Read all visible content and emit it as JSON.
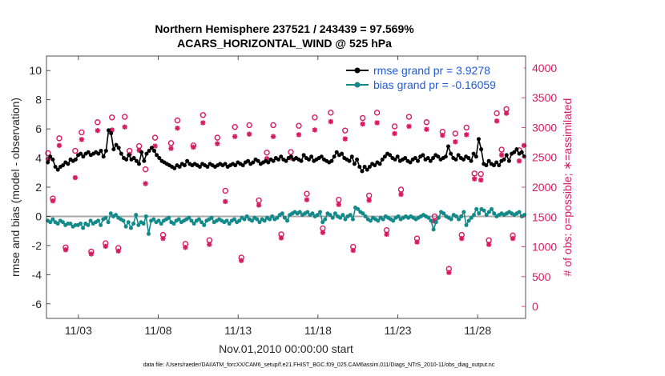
{
  "chart_data": {
    "type": "line",
    "title_line1": "Northern Hemisphere 237521 / 243439 = 97.569%",
    "title_line2": "ACARS_HORIZONTAL_WIND @ 525 hPa",
    "xlabel": "Nov.01,2010 00:00:00 start",
    "ylabel_left": "rmse and bias (model - observation)",
    "ylabel_right": "# of obs: o=possible; ∗=assimilated",
    "footer": "data file: /Users/raeder/DAI/ATM_forcXX/CAM6_setup/f.e21.FHIST_BGC.f09_025.CAM6assim.011/Diags_NTrS_2010-11/obs_diag_output.nc",
    "x_tick_labels": [
      "11/03",
      "11/08",
      "11/13",
      "11/18",
      "11/23",
      "11/28"
    ],
    "x_tick_days": [
      3,
      8,
      13,
      18,
      23,
      28
    ],
    "xlim_days": [
      1,
      31
    ],
    "ylim_left": [
      -7,
      11
    ],
    "yticks_left": [
      "10",
      "8",
      "6",
      "4",
      "2",
      "0",
      "-2",
      "-4",
      "-6"
    ],
    "ylim_right": [
      -200,
      4200
    ],
    "yticks_right": [
      "4000",
      "3500",
      "3000",
      "2500",
      "2000",
      "1500",
      "1000",
      "500",
      "0"
    ],
    "colors": {
      "rmse": "#000000",
      "bias": "#138a8a",
      "obs": "#d81b60",
      "zero_line": "#a9a9a9",
      "legend_text": "#1f5bd6"
    },
    "series": [
      {
        "name": "rmse grand pr = 3.9278",
        "values": [
          3.7,
          4.1,
          3.9,
          3.4,
          3.2,
          3.4,
          3.5,
          3.7,
          3.6,
          3.9,
          3.8,
          3.9,
          4.2,
          4.3,
          4.1,
          4.3,
          4.4,
          4.2,
          4.3,
          4.4,
          4.3,
          4.5,
          4.1,
          4.5,
          5.9,
          5.7,
          4.6,
          4.9,
          4.7,
          4.3,
          4.0,
          3.9,
          4.2,
          3.9,
          4.0,
          3.8,
          3.6,
          4.4,
          3.8,
          4.3,
          4.5,
          4.7,
          4.5,
          4.2,
          4.0,
          3.8,
          3.7,
          3.6,
          3.5,
          3.4,
          3.3,
          3.5,
          3.4,
          3.6,
          3.5,
          3.8,
          3.6,
          3.5,
          3.6,
          3.5,
          3.4,
          3.6,
          3.5,
          3.4,
          3.6,
          3.5,
          3.4,
          3.5,
          3.6,
          3.5,
          3.6,
          3.4,
          3.5,
          3.6,
          3.5,
          3.7,
          3.6,
          3.5,
          3.7,
          3.8,
          3.6,
          3.7,
          3.9,
          3.8,
          3.6,
          3.7,
          3.8,
          3.7,
          3.9,
          3.8,
          4.0,
          3.9,
          4.1,
          3.9,
          3.8,
          4.0,
          4.1,
          3.9,
          4.0,
          3.9,
          3.8,
          4.2,
          4.0,
          3.9,
          4.1,
          3.8,
          3.9,
          4.0,
          4.1,
          3.9,
          3.8,
          3.7,
          3.8,
          4.1,
          4.4,
          4.2,
          4.3,
          4.0,
          3.9,
          3.8,
          4.1,
          3.6,
          3.9,
          3.4,
          3.1,
          3.4,
          3.2,
          3.4,
          3.6,
          3.5,
          3.7,
          3.6,
          3.9,
          4.1,
          4.3,
          4.2,
          4.0,
          3.9,
          4.1,
          3.8,
          3.9,
          4.0,
          3.8,
          3.7,
          3.9,
          4.0,
          3.8,
          4.1,
          4.2,
          3.9,
          4.0,
          3.8,
          4.0,
          4.2,
          4.1,
          3.9,
          4.0,
          4.1,
          4.8,
          4.3,
          4.0,
          3.9,
          4.2,
          4.0,
          3.9,
          4.1,
          4.0,
          3.8,
          4.3,
          4.1,
          5.3,
          4.6,
          3.6,
          3.5,
          3.8,
          3.6,
          3.5,
          3.7,
          3.5,
          3.8,
          3.9,
          4.2,
          3.8,
          4.3,
          4.4,
          4.6,
          4.3,
          4.4,
          4.1
        ]
      },
      {
        "name": "bias grand pr = -0.16059",
        "values": [
          -0.3,
          -0.4,
          -0.2,
          -0.4,
          -0.5,
          -0.3,
          -0.4,
          -0.6,
          -0.5,
          -0.5,
          -0.7,
          -0.6,
          -0.6,
          -0.5,
          -0.8,
          -0.5,
          -0.6,
          -0.3,
          -0.5,
          -0.4,
          -0.3,
          -0.6,
          -0.2,
          -0.1,
          -0.4,
          0.2,
          0.0,
          0.1,
          -0.1,
          -0.2,
          -0.3,
          -0.7,
          -0.4,
          -0.8,
          -0.5,
          0.1,
          -0.6,
          -0.4,
          -0.5,
          0.0,
          -1.2,
          -0.3,
          -0.2,
          -0.4,
          -0.3,
          -0.5,
          -0.3,
          -0.2,
          -0.1,
          -0.4,
          -0.5,
          -0.3,
          -0.2,
          -0.4,
          -0.3,
          -0.2,
          -0.1,
          -0.3,
          -0.5,
          -0.3,
          -0.2,
          -0.4,
          -0.6,
          -0.3,
          -0.2,
          -0.1,
          -0.4,
          -0.3,
          -0.2,
          -0.3,
          -0.4,
          -0.3,
          -0.5,
          -0.3,
          -0.2,
          -0.4,
          -0.3,
          -0.1,
          -0.2,
          0.0,
          -0.2,
          -0.3,
          -0.1,
          -0.2,
          -0.4,
          -0.2,
          -0.3,
          -0.1,
          -0.2,
          0.0,
          -0.2,
          -0.1,
          0.1,
          0.2,
          -0.1,
          -0.3,
          0.1,
          0.2,
          0.3,
          0.2,
          0.3,
          0.1,
          0.2,
          0.3,
          0.1,
          0.2,
          0.0,
          0.1,
          0.3,
          -0.4,
          -0.2,
          0.2,
          0.1,
          -0.1,
          0.2,
          0.0,
          -0.1,
          0.1,
          -0.2,
          0.0,
          0.1,
          -0.2,
          0.6,
          0.5,
          0.3,
          0.2,
          0.0,
          -0.2,
          -0.3,
          -0.1,
          -0.2,
          -0.3,
          -0.1,
          -0.2,
          0.0,
          -0.1,
          -0.2,
          -0.3,
          -0.1,
          0.0,
          -0.2,
          -0.1,
          0.0,
          -0.1,
          0.0,
          -0.1,
          -0.2,
          -0.1,
          0.0,
          0.1,
          0.0,
          -0.1,
          -0.3,
          -0.9,
          -0.4,
          -0.1,
          0.3,
          0.2,
          0.0,
          -0.1,
          -0.2,
          0.1,
          0.0,
          -0.2,
          0.0,
          0.3,
          -0.6,
          -0.3,
          -0.1,
          0.1,
          0.5,
          0.2,
          0.5,
          0.4,
          0.1,
          0.3,
          0.5,
          0.2,
          0.0,
          0.1,
          0.2,
          0.1,
          0.2,
          0.3,
          0.2,
          0.1,
          0.2,
          0.3,
          0.0,
          0.1
        ]
      },
      {
        "name": "# of obs possible",
        "x": [
          1.1,
          1.4,
          1.8,
          2.2,
          2.8,
          3.2,
          3.8,
          4.2,
          4.7,
          5.1,
          5.5,
          5.9,
          6.2,
          6.8,
          7.2,
          7.8,
          8.3,
          8.8,
          9.2,
          9.7,
          10.2,
          10.8,
          11.2,
          11.7,
          12.2,
          12.8,
          13.2,
          13.7,
          14.3,
          14.8,
          15.2,
          15.7,
          16.3,
          16.8,
          17.3,
          17.8,
          18.3,
          18.8,
          19.3,
          19.7,
          20.2,
          20.8,
          21.2,
          21.7,
          22.3,
          22.8,
          23.2,
          23.7,
          24.2,
          24.8,
          25.3,
          25.8,
          26.2,
          26.6,
          27.0,
          27.3,
          27.8,
          28.2,
          28.7,
          29.2,
          29.5,
          29.8,
          30.2,
          30.6
        ],
        "y": [
          2570,
          1810,
          2820,
          990,
          2610,
          2920,
          920,
          3090,
          1060,
          3170,
          980,
          3180,
          2610,
          2690,
          2300,
          2830,
          1200,
          2740,
          3120,
          1050,
          2700,
          3210,
          1110,
          2830,
          1940,
          3010,
          820,
          3040,
          1780,
          2580,
          3040,
          1210,
          2590,
          3030,
          1890,
          3170,
          1310,
          3250,
          1790,
          2950,
          1000,
          3160,
          1860,
          3250,
          1280,
          3020,
          1960,
          3180,
          1140,
          3090,
          1510,
          2930,
          630,
          2900,
          1200,
          3000,
          2230,
          2220,
          1110,
          3240,
          2630,
          3310,
          1190,
          2620
        ]
      },
      {
        "name": "# of obs assimilated",
        "x": [
          1.1,
          1.4,
          1.8,
          2.2,
          2.8,
          3.2,
          3.8,
          4.2,
          4.7,
          5.1,
          5.5,
          5.9,
          6.2,
          6.8,
          7.2,
          7.8,
          8.3,
          8.8,
          9.2,
          9.7,
          10.2,
          10.8,
          11.2,
          11.7,
          12.2,
          12.8,
          13.2,
          13.7,
          14.3,
          14.8,
          15.2,
          15.7,
          16.3,
          16.8,
          17.3,
          17.8,
          18.3,
          18.8,
          19.3,
          19.7,
          20.2,
          20.8,
          21.2,
          21.7,
          22.3,
          22.8,
          23.2,
          23.7,
          24.2,
          24.8,
          25.3,
          25.8,
          26.2,
          26.6,
          27.0,
          27.3,
          27.8,
          28.2,
          28.7,
          29.2,
          29.5,
          29.8,
          30.2,
          30.6,
          30.9
        ],
        "y": [
          2470,
          1770,
          2700,
          950,
          2160,
          2800,
          880,
          2950,
          1010,
          2960,
          930,
          3010,
          2550,
          2620,
          2060,
          2690,
          1140,
          2650,
          2990,
          990,
          2670,
          3080,
          1040,
          2730,
          1760,
          2850,
          770,
          2890,
          1700,
          2480,
          2850,
          1150,
          2490,
          2880,
          1790,
          2960,
          1240,
          3100,
          1710,
          2810,
          940,
          3060,
          1780,
          3080,
          1210,
          2900,
          1880,
          3020,
          1080,
          2970,
          1430,
          2870,
          570,
          2760,
          1140,
          2880,
          2140,
          2120,
          1040,
          3110,
          2540,
          3240,
          1140,
          2440,
          2700
        ]
      }
    ]
  }
}
